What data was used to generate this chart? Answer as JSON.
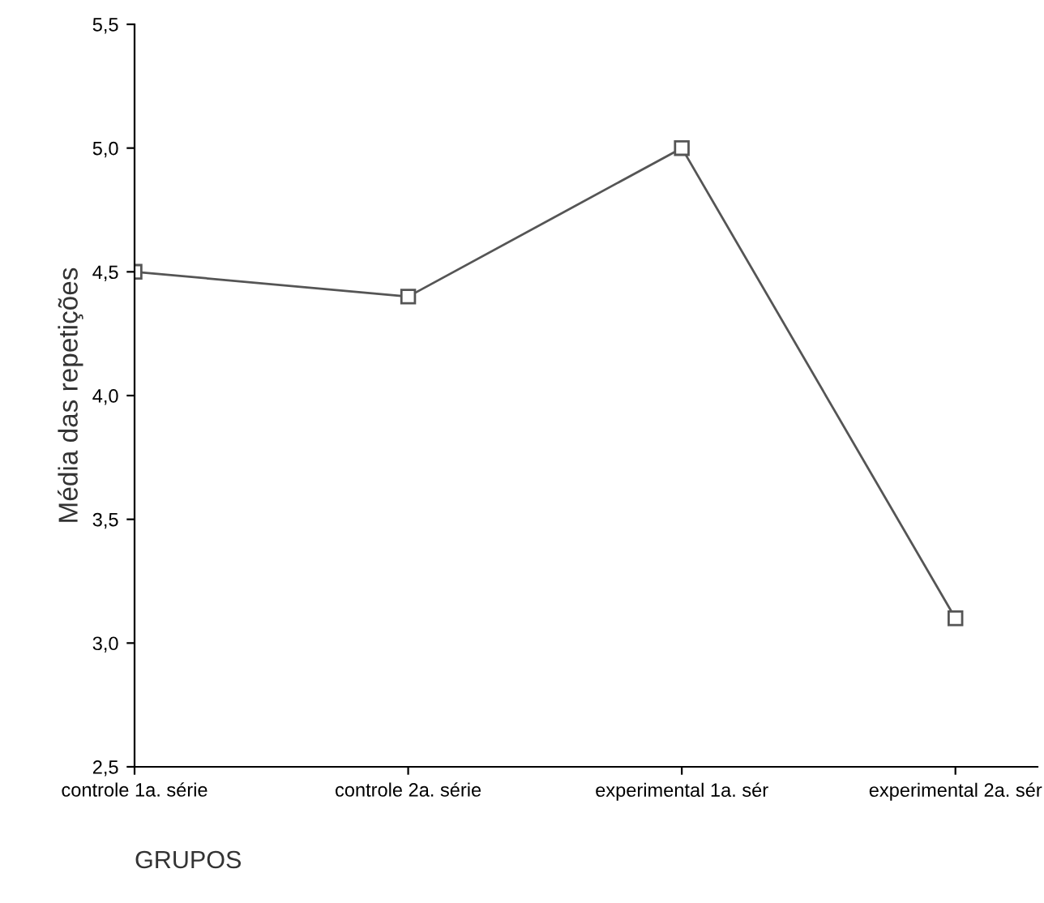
{
  "chart_data": {
    "type": "line",
    "xlabel": "GRUPOS",
    "ylabel": "Média das repetições",
    "categories": [
      "controle 1a. série",
      "controle 2a. série",
      "experimental 1a. sér",
      "experimental 2a. sér"
    ],
    "series": [
      {
        "color": "#555555",
        "values": [
          4.5,
          4.4,
          5.0,
          3.1
        ]
      }
    ],
    "ylim": [
      2.5,
      5.5
    ],
    "yticks": [
      {
        "value": 2.5,
        "label": "2,5"
      },
      {
        "value": 3.0,
        "label": "3,0"
      },
      {
        "value": 3.5,
        "label": "3,5"
      },
      {
        "value": 4.0,
        "label": "4,0"
      },
      {
        "value": 4.5,
        "label": "4,5"
      },
      {
        "value": 5.0,
        "label": "5,0"
      },
      {
        "value": 5.5,
        "label": "5,5"
      }
    ],
    "marker": "square",
    "line_style": "solid",
    "grid": false,
    "legend": false
  }
}
